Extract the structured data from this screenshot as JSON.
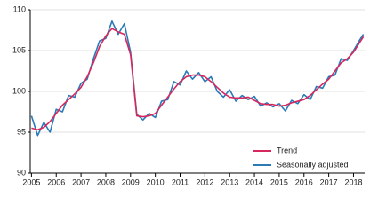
{
  "chart_data": {
    "type": "line",
    "x": [
      2005,
      2005.25,
      2005.5,
      2005.75,
      2006,
      2006.25,
      2006.5,
      2006.75,
      2007,
      2007.25,
      2007.5,
      2007.75,
      2008,
      2008.25,
      2008.5,
      2008.75,
      2009,
      2009.25,
      2009.5,
      2009.75,
      2010,
      2010.25,
      2010.5,
      2010.75,
      2011,
      2011.25,
      2011.5,
      2011.75,
      2012,
      2012.25,
      2012.5,
      2012.75,
      2013,
      2013.25,
      2013.5,
      2013.75,
      2014,
      2014.25,
      2014.5,
      2014.75,
      2015,
      2015.25,
      2015.5,
      2015.75,
      2016,
      2016.25,
      2016.5,
      2016.75,
      2017,
      2017.25,
      2017.5,
      2017.75,
      2018,
      2018.25,
      2018.4
    ],
    "series": [
      {
        "name": "Trend",
        "color": "#d7285e",
        "values": [
          95.5,
          95.3,
          95.6,
          96.3,
          97.3,
          98.3,
          99.0,
          99.7,
          100.5,
          101.8,
          103.5,
          105.5,
          106.8,
          107.7,
          107.3,
          107.0,
          104.5,
          97.0,
          96.9,
          97.0,
          97.3,
          98.3,
          99.3,
          100.3,
          101.2,
          101.8,
          102.0,
          102.0,
          101.8,
          101.2,
          100.5,
          99.8,
          99.3,
          99.2,
          99.2,
          99.3,
          98.9,
          98.5,
          98.4,
          98.4,
          98.2,
          98.3,
          98.6,
          98.8,
          99.0,
          99.5,
          100.2,
          100.9,
          101.5,
          102.5,
          103.5,
          104.0,
          104.8,
          106.0,
          106.7
        ]
      },
      {
        "name": "Seasonally adjusted",
        "color": "#2a7ab8",
        "values": [
          97.0,
          94.6,
          96.2,
          95.0,
          97.8,
          97.5,
          99.5,
          99.3,
          101.0,
          101.5,
          104.0,
          106.2,
          106.5,
          108.6,
          107.0,
          108.3,
          104.8,
          97.2,
          96.5,
          97.3,
          96.8,
          98.8,
          99.0,
          101.2,
          100.8,
          102.5,
          101.5,
          102.3,
          101.2,
          101.8,
          100.0,
          99.3,
          100.2,
          98.8,
          99.5,
          99.0,
          99.4,
          98.2,
          98.6,
          98.1,
          98.5,
          97.6,
          98.9,
          98.5,
          99.6,
          99.0,
          100.6,
          100.4,
          101.8,
          102.0,
          104.0,
          103.8,
          105.0,
          106.3,
          107.0
        ]
      }
    ],
    "xlim": [
      2004.95,
      2018.45
    ],
    "xticks": [
      2005,
      2006,
      2007,
      2008,
      2009,
      2010,
      2011,
      2012,
      2013,
      2014,
      2015,
      2016,
      2017,
      2018
    ],
    "ylim": [
      90,
      110
    ],
    "yticks": [
      90,
      95,
      100,
      105,
      110
    ],
    "grid": true,
    "legend": "lower right"
  }
}
